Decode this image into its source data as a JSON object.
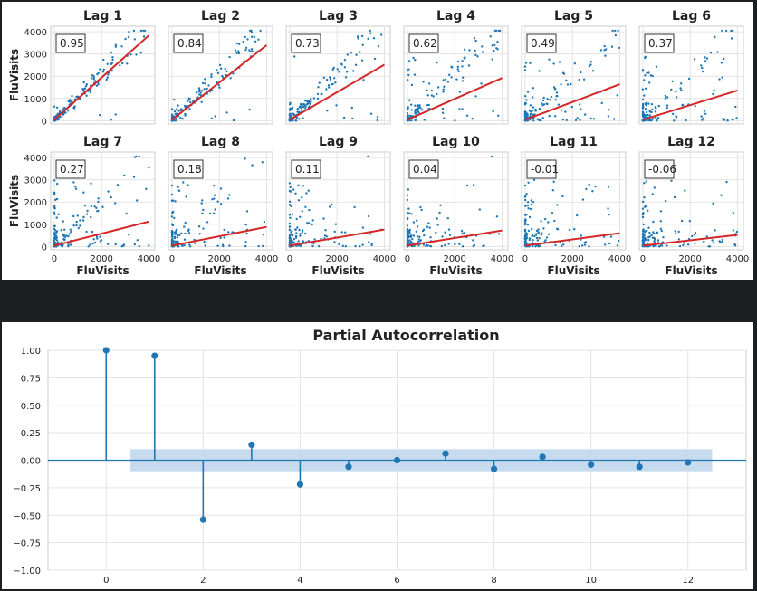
{
  "chart_data": [
    {
      "type": "scatter",
      "panels": [
        {
          "title": "Lag 1",
          "corr": "0.95",
          "slope": 0.95
        },
        {
          "title": "Lag 2",
          "corr": "0.84",
          "slope": 0.84
        },
        {
          "title": "Lag 3",
          "corr": "0.73",
          "slope": 0.62
        },
        {
          "title": "Lag 4",
          "corr": "0.62",
          "slope": 0.47
        },
        {
          "title": "Lag 5",
          "corr": "0.49",
          "slope": 0.4
        },
        {
          "title": "Lag 6",
          "corr": "0.37",
          "slope": 0.33
        },
        {
          "title": "Lag 7",
          "corr": "0.27",
          "slope": 0.27
        },
        {
          "title": "Lag 8",
          "corr": "0.18",
          "slope": 0.21
        },
        {
          "title": "Lag 9",
          "corr": "0.11",
          "slope": 0.18
        },
        {
          "title": "Lag 10",
          "corr": "0.04",
          "slope": 0.17
        },
        {
          "title": "Lag 11",
          "corr": "-0.01",
          "slope": 0.14
        },
        {
          "title": "Lag 12",
          "corr": "-0.06",
          "slope": 0.12
        }
      ],
      "xlabel": "FluVisits",
      "ylabel": "FluVisits",
      "xticks": [
        "0",
        "2000",
        "4000"
      ],
      "yticks": [
        "0",
        "1000",
        "2000",
        "3000",
        "4000"
      ],
      "xlim": [
        -150,
        4250
      ],
      "ylim": [
        -150,
        4250
      ],
      "point_color": "#1f77b4",
      "line_color": "#d62728"
    },
    {
      "type": "stem",
      "title": "Partial Autocorrelation",
      "x": [
        0,
        1,
        2,
        3,
        4,
        5,
        6,
        7,
        8,
        9,
        10,
        11,
        12
      ],
      "values": [
        1.0,
        0.95,
        -0.54,
        0.14,
        -0.22,
        -0.06,
        0.0,
        0.06,
        -0.08,
        0.03,
        -0.04,
        -0.06,
        -0.02
      ],
      "confidence_band": [
        -0.1,
        0.1
      ],
      "xticks": [
        "0",
        "2",
        "4",
        "6",
        "8",
        "10",
        "12"
      ],
      "yticks": [
        "1.00",
        "0.75",
        "0.50",
        "0.25",
        "0.00",
        "−0.25",
        "−0.50",
        "−0.75",
        "−1.00"
      ],
      "xlim": [
        -1.2,
        13.2
      ],
      "ylim": [
        -1.0,
        1.0
      ],
      "color": "#1f77b4",
      "band_color": "#c4d9ee"
    }
  ]
}
